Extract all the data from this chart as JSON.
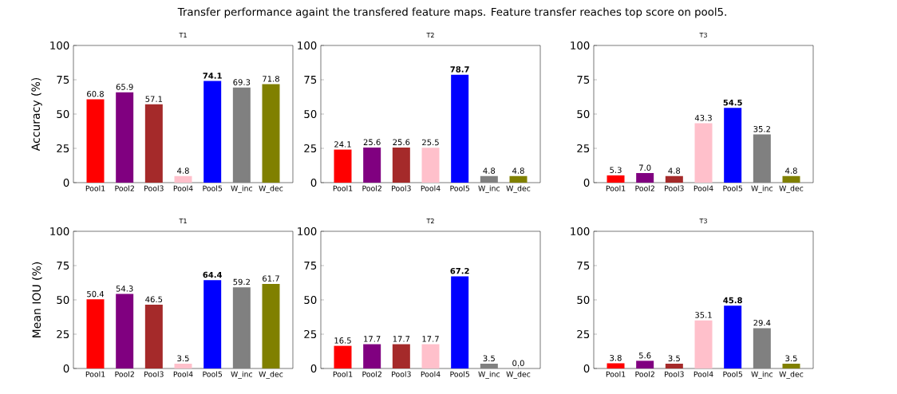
{
  "chart_data": [
    {
      "type": "bar",
      "title": "T1",
      "ylabel": "Accuracy (%)",
      "annotations": [
        "Transfer performance againt the transfered feature maps. Feature transfer reaches top score on pool5."
      ],
      "categories": [
        "Pool1",
        "Pool2",
        "Pool3",
        "Pool4",
        "Pool5",
        "W_inc",
        "W_dec"
      ],
      "values": [
        60.8,
        65.9,
        57.1,
        4.8,
        74.1,
        69.3,
        71.8
      ],
      "value_labels": [
        "60.8",
        "65.9",
        "57.1",
        "4.8",
        "**74.1**",
        "69.3",
        "71.8"
      ],
      "colors": [
        "#ff0000",
        "#800080",
        "#a52a2a",
        "#ffc0cb",
        "#0000ff",
        "#808080",
        "#808000"
      ],
      "ylim": [
        0,
        100
      ],
      "yticks": [
        0,
        25,
        50,
        75,
        100
      ]
    },
    {
      "type": "bar",
      "title": "T2",
      "categories": [
        "Pool1",
        "Pool2",
        "Pool3",
        "Pool4",
        "Pool5",
        "W_inc",
        "W_dec"
      ],
      "values": [
        24.1,
        25.6,
        25.6,
        25.5,
        78.7,
        4.8,
        4.8
      ],
      "value_labels": [
        "24.1",
        "25.6",
        "25.6",
        "25.5",
        "**78.7**",
        "4.8",
        "4.8"
      ],
      "colors": [
        "#ff0000",
        "#800080",
        "#a52a2a",
        "#ffc0cb",
        "#0000ff",
        "#808080",
        "#808000"
      ],
      "ylim": [
        0,
        100
      ],
      "yticks": [
        0,
        25,
        50,
        75,
        100
      ]
    },
    {
      "type": "bar",
      "title": "T3",
      "categories": [
        "Pool1",
        "Pool2",
        "Pool3",
        "Pool4",
        "Pool5",
        "W_inc",
        "W_dec"
      ],
      "values": [
        5.3,
        7.0,
        4.8,
        43.3,
        54.5,
        35.2,
        4.8
      ],
      "value_labels": [
        "5.3",
        "7.0",
        "4.8",
        "43.3",
        "**54.5**",
        "35.2",
        "4.8"
      ],
      "colors": [
        "#ff0000",
        "#800080",
        "#a52a2a",
        "#ffc0cb",
        "#0000ff",
        "#808080",
        "#808000"
      ],
      "ylim": [
        0,
        100
      ],
      "yticks": [
        0,
        25,
        50,
        75,
        100
      ]
    },
    {
      "type": "bar",
      "title": "T1",
      "ylabel": "Mean IOU (%)",
      "categories": [
        "Pool1",
        "Pool2",
        "Pool3",
        "Pool4",
        "Pool5",
        "W_inc",
        "W_dec"
      ],
      "values": [
        50.4,
        54.3,
        46.5,
        3.5,
        64.4,
        59.2,
        61.7
      ],
      "value_labels": [
        "50.4",
        "54.3",
        "46.5",
        "3.5",
        "**64.4**",
        "59.2",
        "61.7"
      ],
      "colors": [
        "#ff0000",
        "#800080",
        "#a52a2a",
        "#ffc0cb",
        "#0000ff",
        "#808080",
        "#808000"
      ],
      "ylim": [
        0,
        100
      ],
      "yticks": [
        0,
        25,
        50,
        75,
        100
      ]
    },
    {
      "type": "bar",
      "title": "T2",
      "categories": [
        "Pool1",
        "Pool2",
        "Pool3",
        "Pool4",
        "Pool5",
        "W_inc",
        "W_dec"
      ],
      "values": [
        16.5,
        17.7,
        17.7,
        17.7,
        67.2,
        3.5,
        0.0
      ],
      "value_labels": [
        "16.5",
        "17.7",
        "17.7",
        "17.7",
        "**67.2**",
        "3.5",
        "0.0"
      ],
      "colors": [
        "#ff0000",
        "#800080",
        "#a52a2a",
        "#ffc0cb",
        "#0000ff",
        "#808080",
        "#808000"
      ],
      "ylim": [
        0,
        100
      ],
      "yticks": [
        0,
        25,
        50,
        75,
        100
      ]
    },
    {
      "type": "bar",
      "title": "T3",
      "categories": [
        "Pool1",
        "Pool2",
        "Pool3",
        "Pool4",
        "Pool5",
        "W_inc",
        "W_dec"
      ],
      "values": [
        3.8,
        5.6,
        3.5,
        35.1,
        45.8,
        29.4,
        3.5
      ],
      "value_labels": [
        "3.8",
        "5.6",
        "3.5",
        "35.1",
        "**45.8**",
        "29.4",
        "3.5"
      ],
      "colors": [
        "#ff0000",
        "#800080",
        "#a52a2a",
        "#ffc0cb",
        "#0000ff",
        "#808080",
        "#808000"
      ],
      "ylim": [
        0,
        100
      ],
      "yticks": [
        0,
        25,
        50,
        75,
        100
      ]
    }
  ]
}
